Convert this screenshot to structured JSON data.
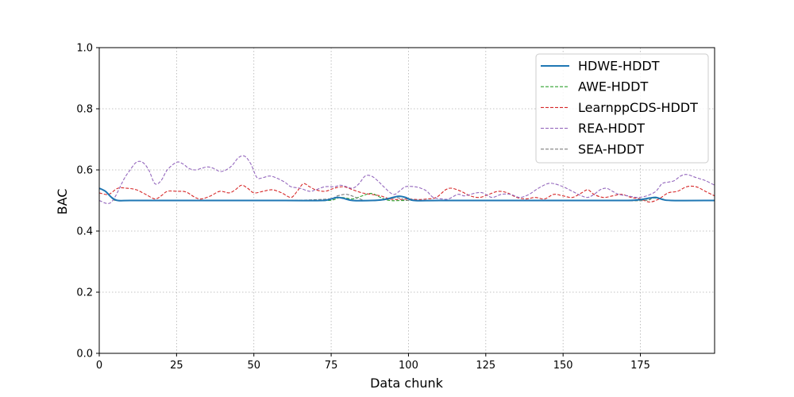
{
  "chart_data": {
    "type": "line",
    "title": "",
    "xlabel": "Data chunk",
    "ylabel": "BAC",
    "xlim": [
      0,
      199
    ],
    "ylim": [
      0.0,
      1.0
    ],
    "xticks": [
      0,
      25,
      50,
      75,
      100,
      125,
      150,
      175
    ],
    "xtick_labels": [
      "0",
      "25",
      "50",
      "75",
      "100",
      "125",
      "150",
      "175"
    ],
    "yticks": [
      0.0,
      0.2,
      0.4,
      0.6,
      0.8,
      1.0
    ],
    "ytick_labels": [
      "0.0",
      "0.2",
      "0.4",
      "0.6",
      "0.8",
      "1.0"
    ],
    "grid": true,
    "legend_position": "top-right",
    "series": [
      {
        "name": "HDWE-HDDT",
        "color": "#1f77b4",
        "style": "solid",
        "points": [
          [
            0,
            0.54
          ],
          [
            2,
            0.53
          ],
          [
            4,
            0.51
          ],
          [
            6,
            0.5
          ],
          [
            10,
            0.5
          ],
          [
            20,
            0.5
          ],
          [
            40,
            0.5
          ],
          [
            60,
            0.5
          ],
          [
            72,
            0.5
          ],
          [
            75,
            0.505
          ],
          [
            77,
            0.51
          ],
          [
            79,
            0.507
          ],
          [
            82,
            0.5
          ],
          [
            88,
            0.5
          ],
          [
            92,
            0.503
          ],
          [
            95,
            0.51
          ],
          [
            97,
            0.514
          ],
          [
            99,
            0.51
          ],
          [
            102,
            0.5
          ],
          [
            110,
            0.5
          ],
          [
            130,
            0.5
          ],
          [
            150,
            0.5
          ],
          [
            170,
            0.5
          ],
          [
            175,
            0.503
          ],
          [
            178,
            0.508
          ],
          [
            180,
            0.51
          ],
          [
            182,
            0.504
          ],
          [
            185,
            0.5
          ],
          [
            199,
            0.5
          ]
        ]
      },
      {
        "name": "AWE-HDDT",
        "color": "#2ca02c",
        "style": "dashed",
        "points": [
          [
            0,
            0.54
          ],
          [
            2,
            0.53
          ],
          [
            4,
            0.51
          ],
          [
            6,
            0.5
          ],
          [
            20,
            0.5
          ],
          [
            40,
            0.5
          ],
          [
            60,
            0.5
          ],
          [
            74,
            0.5
          ],
          [
            78,
            0.51
          ],
          [
            82,
            0.505
          ],
          [
            85,
            0.515
          ],
          [
            88,
            0.523
          ],
          [
            91,
            0.51
          ],
          [
            94,
            0.5
          ],
          [
            100,
            0.5
          ],
          [
            120,
            0.5
          ],
          [
            140,
            0.5
          ],
          [
            160,
            0.5
          ],
          [
            176,
            0.5
          ],
          [
            179,
            0.508
          ],
          [
            182,
            0.505
          ],
          [
            185,
            0.5
          ],
          [
            199,
            0.5
          ]
        ]
      },
      {
        "name": "LearnppCDS-HDDT",
        "color": "#d62728",
        "style": "dashed",
        "points": [
          [
            0,
            0.525
          ],
          [
            3,
            0.52
          ],
          [
            6,
            0.54
          ],
          [
            9,
            0.54
          ],
          [
            12,
            0.535
          ],
          [
            15,
            0.52
          ],
          [
            18,
            0.505
          ],
          [
            20,
            0.515
          ],
          [
            22,
            0.53
          ],
          [
            25,
            0.53
          ],
          [
            28,
            0.528
          ],
          [
            31,
            0.51
          ],
          [
            33,
            0.505
          ],
          [
            36,
            0.515
          ],
          [
            39,
            0.53
          ],
          [
            42,
            0.525
          ],
          [
            44,
            0.535
          ],
          [
            46,
            0.55
          ],
          [
            48,
            0.54
          ],
          [
            50,
            0.525
          ],
          [
            53,
            0.53
          ],
          [
            56,
            0.535
          ],
          [
            59,
            0.525
          ],
          [
            62,
            0.51
          ],
          [
            64,
            0.53
          ],
          [
            66,
            0.555
          ],
          [
            68,
            0.545
          ],
          [
            70,
            0.535
          ],
          [
            73,
            0.53
          ],
          [
            76,
            0.54
          ],
          [
            79,
            0.545
          ],
          [
            82,
            0.535
          ],
          [
            85,
            0.525
          ],
          [
            88,
            0.52
          ],
          [
            91,
            0.515
          ],
          [
            94,
            0.505
          ],
          [
            97,
            0.503
          ],
          [
            100,
            0.505
          ],
          [
            103,
            0.503
          ],
          [
            106,
            0.505
          ],
          [
            109,
            0.51
          ],
          [
            112,
            0.535
          ],
          [
            114,
            0.54
          ],
          [
            117,
            0.53
          ],
          [
            120,
            0.515
          ],
          [
            123,
            0.51
          ],
          [
            126,
            0.52
          ],
          [
            129,
            0.53
          ],
          [
            132,
            0.525
          ],
          [
            135,
            0.51
          ],
          [
            138,
            0.505
          ],
          [
            141,
            0.51
          ],
          [
            144,
            0.505
          ],
          [
            147,
            0.52
          ],
          [
            150,
            0.515
          ],
          [
            153,
            0.51
          ],
          [
            156,
            0.525
          ],
          [
            158,
            0.535
          ],
          [
            160,
            0.52
          ],
          [
            163,
            0.51
          ],
          [
            166,
            0.515
          ],
          [
            169,
            0.52
          ],
          [
            172,
            0.51
          ],
          [
            175,
            0.505
          ],
          [
            178,
            0.495
          ],
          [
            181,
            0.505
          ],
          [
            184,
            0.525
          ],
          [
            187,
            0.53
          ],
          [
            190,
            0.545
          ],
          [
            193,
            0.545
          ],
          [
            196,
            0.53
          ],
          [
            199,
            0.515
          ]
        ]
      },
      {
        "name": "REA-HDDT",
        "color": "#9467bd",
        "style": "dashed",
        "points": [
          [
            0,
            0.5
          ],
          [
            3,
            0.49
          ],
          [
            5,
            0.51
          ],
          [
            8,
            0.57
          ],
          [
            10,
            0.6
          ],
          [
            12,
            0.625
          ],
          [
            14,
            0.625
          ],
          [
            16,
            0.6
          ],
          [
            18,
            0.555
          ],
          [
            20,
            0.565
          ],
          [
            22,
            0.6
          ],
          [
            25,
            0.625
          ],
          [
            27,
            0.62
          ],
          [
            29,
            0.605
          ],
          [
            31,
            0.6
          ],
          [
            33,
            0.605
          ],
          [
            35,
            0.61
          ],
          [
            37,
            0.605
          ],
          [
            39,
            0.595
          ],
          [
            41,
            0.6
          ],
          [
            43,
            0.615
          ],
          [
            45,
            0.64
          ],
          [
            47,
            0.645
          ],
          [
            49,
            0.62
          ],
          [
            51,
            0.575
          ],
          [
            53,
            0.575
          ],
          [
            55,
            0.58
          ],
          [
            57,
            0.575
          ],
          [
            60,
            0.56
          ],
          [
            62,
            0.545
          ],
          [
            65,
            0.54
          ],
          [
            68,
            0.53
          ],
          [
            70,
            0.535
          ],
          [
            73,
            0.545
          ],
          [
            76,
            0.545
          ],
          [
            78,
            0.55
          ],
          [
            80,
            0.545
          ],
          [
            82,
            0.54
          ],
          [
            84,
            0.555
          ],
          [
            86,
            0.58
          ],
          [
            88,
            0.58
          ],
          [
            90,
            0.565
          ],
          [
            92,
            0.545
          ],
          [
            95,
            0.52
          ],
          [
            97,
            0.53
          ],
          [
            99,
            0.545
          ],
          [
            102,
            0.545
          ],
          [
            104,
            0.54
          ],
          [
            106,
            0.53
          ],
          [
            108,
            0.51
          ],
          [
            111,
            0.505
          ],
          [
            113,
            0.505
          ],
          [
            116,
            0.52
          ],
          [
            118,
            0.515
          ],
          [
            120,
            0.52
          ],
          [
            122,
            0.525
          ],
          [
            124,
            0.525
          ],
          [
            127,
            0.51
          ],
          [
            130,
            0.52
          ],
          [
            133,
            0.52
          ],
          [
            136,
            0.51
          ],
          [
            139,
            0.52
          ],
          [
            142,
            0.54
          ],
          [
            145,
            0.555
          ],
          [
            147,
            0.555
          ],
          [
            150,
            0.545
          ],
          [
            153,
            0.53
          ],
          [
            156,
            0.515
          ],
          [
            158,
            0.51
          ],
          [
            160,
            0.52
          ],
          [
            162,
            0.535
          ],
          [
            164,
            0.54
          ],
          [
            166,
            0.53
          ],
          [
            168,
            0.52
          ],
          [
            171,
            0.515
          ],
          [
            174,
            0.51
          ],
          [
            177,
            0.515
          ],
          [
            180,
            0.53
          ],
          [
            182,
            0.555
          ],
          [
            184,
            0.56
          ],
          [
            186,
            0.565
          ],
          [
            188,
            0.58
          ],
          [
            190,
            0.585
          ],
          [
            193,
            0.575
          ],
          [
            196,
            0.565
          ],
          [
            199,
            0.55
          ]
        ]
      },
      {
        "name": "SEA-HDDT",
        "color": "#7f7f7f",
        "style": "dashed",
        "points": [
          [
            0,
            0.54
          ],
          [
            2,
            0.53
          ],
          [
            4,
            0.51
          ],
          [
            6,
            0.5
          ],
          [
            20,
            0.5
          ],
          [
            40,
            0.5
          ],
          [
            60,
            0.5
          ],
          [
            74,
            0.505
          ],
          [
            77,
            0.515
          ],
          [
            80,
            0.52
          ],
          [
            83,
            0.51
          ],
          [
            86,
            0.5
          ],
          [
            90,
            0.5
          ],
          [
            94,
            0.505
          ],
          [
            96,
            0.51
          ],
          [
            98,
            0.505
          ],
          [
            101,
            0.5
          ],
          [
            120,
            0.5
          ],
          [
            140,
            0.5
          ],
          [
            160,
            0.5
          ],
          [
            176,
            0.5
          ],
          [
            179,
            0.51
          ],
          [
            182,
            0.505
          ],
          [
            185,
            0.5
          ],
          [
            199,
            0.5
          ]
        ]
      }
    ]
  }
}
